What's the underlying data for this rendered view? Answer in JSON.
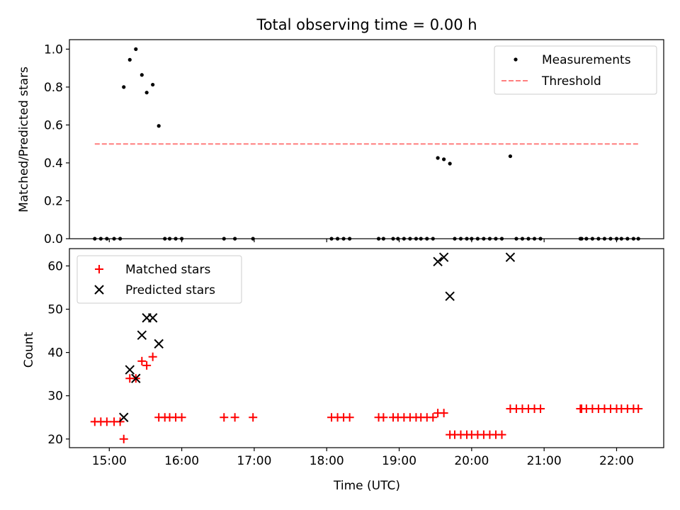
{
  "figure_title": "Total observing time = 0.00 h",
  "chart_data": [
    {
      "type": "scatter",
      "title": "Total observing time = 0.00 h",
      "xlabel": "",
      "ylabel": "Matched/Predicted stars",
      "xlim": [
        "14:27",
        "22:39"
      ],
      "ylim": [
        0,
        1.05
      ],
      "x_ticks": [
        "15:00",
        "16:00",
        "17:00",
        "18:00",
        "19:00",
        "20:00",
        "21:00",
        "22:00"
      ],
      "x_tick_labels_shown": false,
      "y_ticks": [
        "0.0",
        "0.2",
        "0.4",
        "0.6",
        "0.8",
        "1.0"
      ],
      "grid": false,
      "legend": "top-right",
      "series": [
        {
          "name": "Measurements",
          "kind": "points",
          "color": "#000000",
          "x": [
            "14:48",
            "14:53",
            "14:58",
            "15:04",
            "15:09",
            "15:12",
            "15:17",
            "15:22",
            "15:27",
            "15:31",
            "15:36",
            "15:41",
            "15:46",
            "15:50",
            "15:55",
            "16:00",
            "16:35",
            "16:44",
            "16:59",
            "18:04",
            "18:09",
            "18:14",
            "18:19",
            "18:43",
            "18:47",
            "18:55",
            "18:59",
            "19:04",
            "19:09",
            "19:14",
            "19:18",
            "19:23",
            "19:28",
            "19:32",
            "19:37",
            "19:42",
            "19:46",
            "19:51",
            "19:56",
            "20:00",
            "20:05",
            "20:10",
            "20:15",
            "20:20",
            "20:25",
            "20:32",
            "20:37",
            "20:42",
            "20:47",
            "20:52",
            "20:57",
            "21:30",
            "21:31",
            "21:35",
            "21:40",
            "21:45",
            "21:50",
            "21:55",
            "22:00",
            "22:04",
            "22:09",
            "22:14",
            "22:18"
          ],
          "y": [
            0,
            0,
            0,
            0,
            0,
            0.8,
            0.944,
            1.0,
            0.864,
            0.771,
            0.8125,
            0.595,
            0,
            0,
            0,
            0,
            0,
            0,
            0,
            0,
            0,
            0,
            0,
            0,
            0,
            0,
            0,
            0,
            0,
            0,
            0,
            0,
            0,
            0.426,
            0.419,
            0.396,
            0,
            0,
            0,
            0,
            0,
            0,
            0,
            0,
            0,
            0.435,
            0,
            0,
            0,
            0,
            0,
            0,
            0,
            0,
            0,
            0,
            0,
            0,
            0,
            0,
            0,
            0,
            0
          ]
        },
        {
          "name": "Threshold",
          "kind": "dashed-line",
          "color": "#ff7f7f",
          "x": [
            "14:48",
            "22:18"
          ],
          "y": [
            0.5,
            0.5
          ]
        }
      ]
    },
    {
      "type": "scatter",
      "title": "",
      "xlabel": "Time (UTC)",
      "ylabel": "Count",
      "xlim": [
        "14:27",
        "22:39"
      ],
      "ylim": [
        18,
        64
      ],
      "x_ticks": [
        "15:00",
        "16:00",
        "17:00",
        "18:00",
        "19:00",
        "20:00",
        "21:00",
        "22:00"
      ],
      "y_ticks": [
        "20",
        "30",
        "40",
        "50",
        "60"
      ],
      "grid": false,
      "legend": "top-left",
      "series": [
        {
          "name": "Matched stars",
          "kind": "plus",
          "color": "#ff0000",
          "x": [
            "14:48",
            "14:53",
            "14:58",
            "15:04",
            "15:09",
            "15:12",
            "15:17",
            "15:22",
            "15:27",
            "15:31",
            "15:36",
            "15:41",
            "15:46",
            "15:50",
            "15:55",
            "16:00",
            "16:35",
            "16:44",
            "16:59",
            "18:04",
            "18:09",
            "18:14",
            "18:19",
            "18:43",
            "18:47",
            "18:55",
            "18:59",
            "19:04",
            "19:09",
            "19:14",
            "19:18",
            "19:23",
            "19:28",
            "19:32",
            "19:37",
            "19:42",
            "19:46",
            "19:51",
            "19:56",
            "20:00",
            "20:05",
            "20:10",
            "20:15",
            "20:20",
            "20:25",
            "20:32",
            "20:37",
            "20:42",
            "20:47",
            "20:52",
            "20:57",
            "21:30",
            "21:31",
            "21:35",
            "21:40",
            "21:45",
            "21:50",
            "21:55",
            "22:00",
            "22:04",
            "22:09",
            "22:14",
            "22:18"
          ],
          "y": [
            24,
            24,
            24,
            24,
            24,
            20,
            34,
            34,
            38,
            37,
            39,
            25,
            25,
            25,
            25,
            25,
            25,
            25,
            25,
            25,
            25,
            25,
            25,
            25,
            25,
            25,
            25,
            25,
            25,
            25,
            25,
            25,
            25,
            26,
            26,
            21,
            21,
            21,
            21,
            21,
            21,
            21,
            21,
            21,
            21,
            27,
            27,
            27,
            27,
            27,
            27,
            27,
            27,
            27,
            27,
            27,
            27,
            27,
            27,
            27,
            27,
            27,
            27
          ]
        },
        {
          "name": "Predicted stars",
          "kind": "x",
          "color": "#000000",
          "x": [
            "15:12",
            "15:17",
            "15:22",
            "15:27",
            "15:31",
            "15:36",
            "15:41",
            "19:32",
            "19:37",
            "19:42",
            "20:32"
          ],
          "y": [
            25,
            36,
            34,
            44,
            48,
            48,
            42,
            61,
            62,
            53,
            62
          ]
        }
      ]
    }
  ]
}
